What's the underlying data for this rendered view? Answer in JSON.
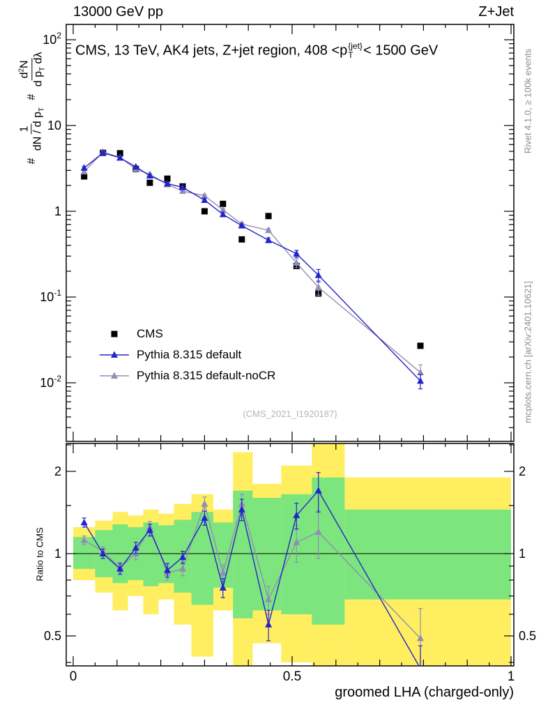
{
  "header": {
    "left": "13000 GeV pp",
    "right": "Z+Jet"
  },
  "credits": {
    "right_top": "Rivet 4.1.0, ≥ 100k events",
    "right_bottom": "mcplots.cern.ch [arXiv:2401.10621]"
  },
  "watermark": "(CMS_2021_I1920187)",
  "axes": {
    "x_title": "groomed LHA (charged-only)",
    "ratio_y_title": "Ratio to CMS",
    "title_parts": [
      {
        "t": "CMS, 13 TeV, AK4 jets, Z+jet region, 408 <p"
      },
      {
        "supsub": {
          "sup": "{jet}",
          "sub": "T"
        }
      },
      {
        "t": "< 1500 GeV"
      }
    ],
    "main_y_title_parts": [
      {
        "t": "# "
      },
      {
        "frac": {
          "num": [
            {
              "t": "1"
            }
          ],
          "den": [
            {
              "t": "dN / d p"
            },
            {
              "t": "T",
              "style": "sub"
            }
          ]
        }
      },
      {
        "t": " # "
      },
      {
        "frac": {
          "num": [
            {
              "t": "d"
            },
            {
              "t": "2",
              "style": "sup"
            },
            {
              "t": "N"
            }
          ],
          "den": [
            {
              "t": "d p"
            },
            {
              "t": "T",
              "style": "sub"
            },
            {
              "t": " dλ"
            }
          ]
        }
      }
    ],
    "xticks": [
      {
        "v": 0,
        "label": "0"
      },
      {
        "v": 0.5,
        "label": "0.5"
      },
      {
        "v": 1,
        "label": "1"
      }
    ],
    "main_yticks": [
      {
        "v": 100,
        "base": "10",
        "sup": "2"
      },
      {
        "v": 10,
        "base": "10"
      },
      {
        "v": 1,
        "base": "1"
      },
      {
        "v": 0.1,
        "base": "10",
        "sup": "-1"
      },
      {
        "v": 0.01,
        "base": "10",
        "sup": "-2"
      }
    ],
    "ratio_yticks": [
      {
        "v": 2,
        "label": "2"
      },
      {
        "v": 1,
        "label": "1"
      },
      {
        "v": 0.5,
        "label": "0.5"
      }
    ]
  },
  "legend": [
    {
      "label": "CMS",
      "marker": "square",
      "color": "#000000",
      "line": false
    },
    {
      "label": "Pythia 8.315 default",
      "marker": "triangle",
      "color": "#2323cc",
      "line": true
    },
    {
      "label": "Pythia 8.315 default-noCR",
      "marker": "triangle",
      "color": "#8f8fb4",
      "line": true
    }
  ],
  "colors": {
    "blue": "#2323cc",
    "gray": "#8f8fb4",
    "yellow_band": "#ffee60",
    "green_band": "#7de57d",
    "frame": "#000000"
  },
  "chart_data": {
    "type": "scatter",
    "title": "CMS, 13 TeV, AK4 jets, Z+jet region, 408 < pT(jet) < 1500 GeV",
    "xlabel": "groomed LHA (charged-only)",
    "xlim": [
      0,
      1
    ],
    "x": [
      0.025,
      0.068,
      0.107,
      0.143,
      0.175,
      0.215,
      0.25,
      0.3,
      0.342,
      0.385,
      0.446,
      0.51,
      0.56,
      0.793
    ],
    "bin_edges": [
      0,
      0.05,
      0.09,
      0.125,
      0.16,
      0.195,
      0.23,
      0.27,
      0.32,
      0.365,
      0.41,
      0.475,
      0.545,
      0.62,
      1.0
    ],
    "main": {
      "ylog": true,
      "ylim": [
        0.0021,
        151
      ],
      "series": [
        {
          "name": "CMS",
          "marker": "square",
          "line": false,
          "color": "#000000",
          "y": [
            2.55,
            4.8,
            4.75,
            3.1,
            2.15,
            2.4,
            1.95,
            1.0,
            1.22,
            0.47,
            0.88,
            0.23,
            0.11,
            0.027
          ]
        },
        {
          "name": "Pythia 8.315 default",
          "marker": "triangle",
          "line": true,
          "color": "#2323cc",
          "y": [
            3.2,
            4.8,
            4.2,
            3.3,
            2.6,
            2.1,
            1.9,
            1.35,
            0.92,
            0.68,
            0.46,
            0.32,
            0.18,
            0.0105
          ],
          "yerr": [
            0.12,
            0.12,
            0.1,
            0.09,
            0.08,
            0.07,
            0.06,
            0.05,
            0.04,
            0.035,
            0.03,
            0.03,
            0.03,
            0.002
          ]
        },
        {
          "name": "Pythia 8.315 default-noCR",
          "marker": "triangle",
          "line": true,
          "color": "#8f8fb4",
          "y": [
            2.9,
            4.9,
            4.25,
            3.1,
            2.7,
            2.05,
            1.72,
            1.52,
            1.04,
            0.71,
            0.6,
            0.25,
            0.13,
            0.0132
          ],
          "yerr": [
            0.12,
            0.12,
            0.1,
            0.09,
            0.08,
            0.07,
            0.06,
            0.05,
            0.04,
            0.035,
            0.03,
            0.03,
            0.025,
            0.003
          ]
        }
      ]
    },
    "ratio": {
      "ylog": true,
      "ylim": [
        0.388,
        2.53
      ],
      "ylabel": "Ratio to CMS",
      "bands": {
        "yellow": {
          "lo": [
            0.8,
            0.72,
            0.62,
            0.7,
            0.6,
            0.68,
            0.55,
            0.42,
            0.62,
            0.36,
            0.47,
            0.4,
            0.36,
            0.36
          ],
          "hi": [
            1.25,
            1.32,
            1.42,
            1.38,
            1.45,
            1.4,
            1.52,
            1.65,
            1.45,
            2.35,
            1.8,
            2.1,
            2.55,
            1.9
          ]
        },
        "green": {
          "lo": [
            0.88,
            0.82,
            0.78,
            0.8,
            0.76,
            0.78,
            0.72,
            0.65,
            0.75,
            0.58,
            0.62,
            0.6,
            0.55,
            0.68
          ],
          "hi": [
            1.15,
            1.22,
            1.28,
            1.25,
            1.3,
            1.27,
            1.33,
            1.42,
            1.3,
            1.7,
            1.6,
            1.65,
            1.9,
            1.45
          ]
        }
      },
      "series": [
        {
          "name": "Pythia 8.315 default",
          "marker": "triangle",
          "line": true,
          "color": "#2323cc",
          "y": [
            1.3,
            1.0,
            0.88,
            1.05,
            1.22,
            0.87,
            0.97,
            1.35,
            0.75,
            1.45,
            0.55,
            1.38,
            1.7,
            0.38
          ],
          "yerr": [
            0.05,
            0.04,
            0.04,
            0.05,
            0.06,
            0.05,
            0.05,
            0.08,
            0.06,
            0.13,
            0.07,
            0.15,
            0.28,
            0.08
          ]
        },
        {
          "name": "Pythia 8.315 default-noCR",
          "marker": "triangle",
          "line": true,
          "color": "#8f8fb4",
          "y": [
            1.12,
            1.02,
            0.89,
            1.0,
            1.25,
            0.85,
            0.88,
            1.52,
            0.85,
            1.52,
            0.68,
            1.1,
            1.2,
            0.49
          ],
          "yerr": [
            0.04,
            0.04,
            0.04,
            0.05,
            0.06,
            0.05,
            0.05,
            0.09,
            0.06,
            0.13,
            0.08,
            0.17,
            0.24,
            0.14
          ]
        }
      ]
    }
  }
}
